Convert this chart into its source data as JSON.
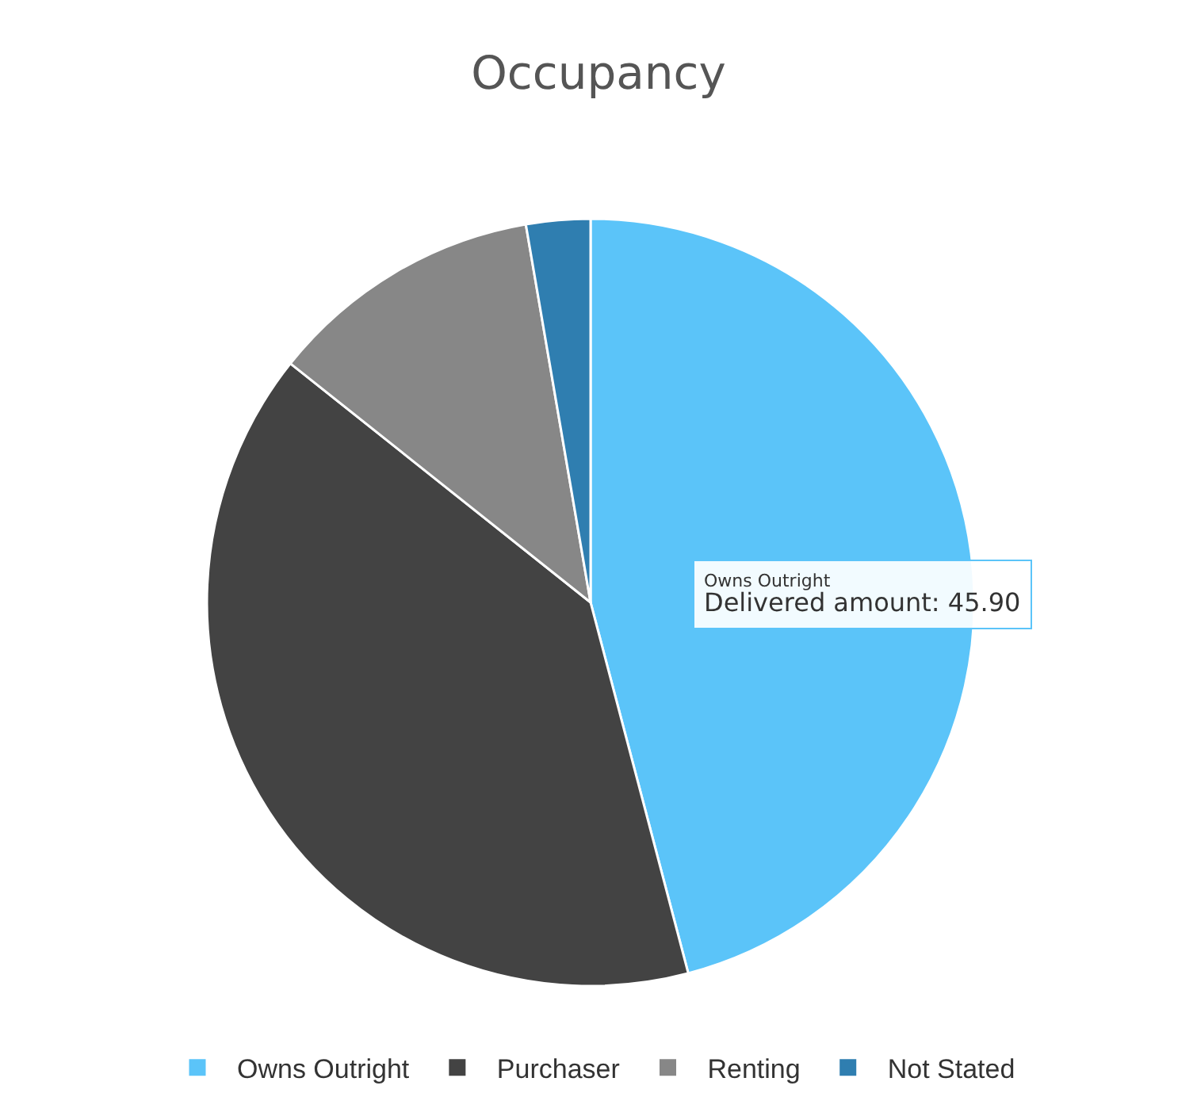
{
  "chart_data": {
    "type": "pie",
    "title": "Occupancy",
    "categories": [
      "Owns Outright",
      "Purchaser",
      "Renting",
      "Not Stated"
    ],
    "values": [
      45.9,
      39.8,
      11.6,
      2.7
    ],
    "colors": [
      "#5bc4f9",
      "#434343",
      "#878787",
      "#2f7eb0"
    ],
    "legend": "bottom",
    "annotations": [
      "Owns Outright",
      "Delivered amount: 45.90"
    ]
  }
}
